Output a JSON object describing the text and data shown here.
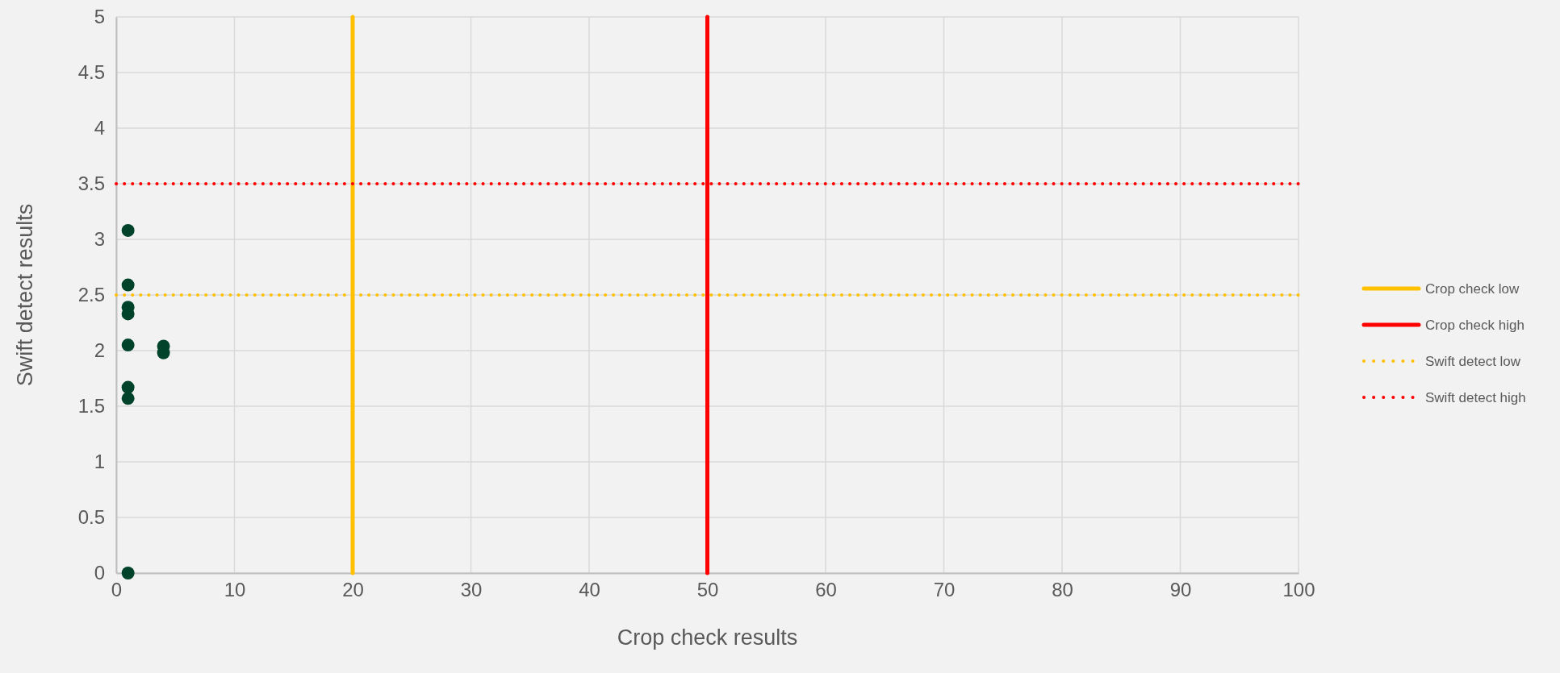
{
  "chart_data": {
    "type": "scatter",
    "xlabel": "Crop check results",
    "ylabel": "Swift detect results",
    "xlim": [
      0,
      100
    ],
    "xticks": [
      0,
      10,
      20,
      30,
      40,
      50,
      60,
      70,
      80,
      90,
      100
    ],
    "ylim": [
      0,
      5
    ],
    "yticks": [
      0,
      0.5,
      1,
      1.5,
      2,
      2.5,
      3,
      3.5,
      4,
      4.5,
      5
    ],
    "grid": true,
    "legend": "right",
    "marker": "circle",
    "series": [
      {
        "type": "scatter",
        "color": "#00432b",
        "x": [
          1,
          1,
          1,
          1,
          1,
          4,
          4,
          1,
          1,
          1
        ],
        "values": [
          3.08,
          2.59,
          2.39,
          2.33,
          2.05,
          2.04,
          1.98,
          1.67,
          1.57,
          0
        ]
      },
      {
        "type": "line",
        "name": "Crop check low",
        "color": "#ffc000",
        "line_style": "solid",
        "marker": "none",
        "x": [
          20,
          20
        ],
        "values": [
          0,
          5
        ]
      },
      {
        "type": "line",
        "name": "Crop check high",
        "color": "#ff0000",
        "line_style": "solid",
        "marker": "none",
        "x": [
          50,
          50
        ],
        "values": [
          0,
          5
        ]
      },
      {
        "type": "line",
        "name": "Swift detect low",
        "color": "#ffc000",
        "line_style": "dotted",
        "marker": "none",
        "x": [
          0,
          100
        ],
        "values": [
          2.5,
          2.5
        ]
      },
      {
        "type": "line",
        "name": "Swift detect high",
        "color": "#ff0000",
        "line_style": "dotted",
        "marker": "none",
        "x": [
          0,
          100
        ],
        "values": [
          3.5,
          3.5
        ]
      }
    ]
  }
}
